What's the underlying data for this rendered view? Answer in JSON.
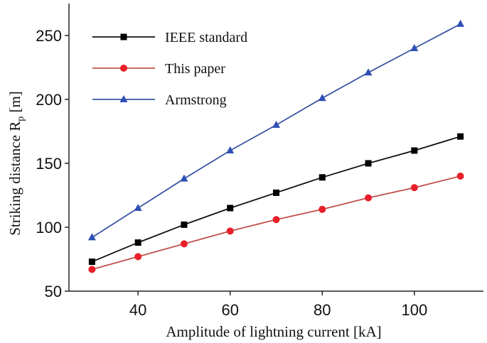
{
  "chart_data": {
    "type": "line",
    "xlabel": "Amplitude of lightning current [kA]",
    "ylabel_main": "Striking distance R",
    "ylabel_sub": "p",
    "ylabel_unit": " [m]",
    "xlim": [
      25,
      115
    ],
    "ylim": [
      50,
      275
    ],
    "x_ticks": [
      40,
      60,
      80,
      100
    ],
    "y_ticks": [
      50,
      100,
      150,
      200,
      250
    ],
    "x": [
      30,
      40,
      50,
      60,
      70,
      80,
      90,
      100,
      110
    ],
    "legend_position": "top-left",
    "grid": false,
    "series": [
      {
        "name": "IEEE standard",
        "marker": "square",
        "color": "#111111",
        "marker_color": "#000000",
        "values": [
          73,
          88,
          102,
          115,
          127,
          139,
          150,
          160,
          171
        ]
      },
      {
        "name": "This paper",
        "marker": "circle",
        "color": "#c0504d",
        "marker_color": "#e8202a",
        "values": [
          67,
          77,
          87,
          97,
          106,
          114,
          123,
          131,
          140
        ]
      },
      {
        "name": "Armstrong",
        "marker": "triangle",
        "color": "#3a55a4",
        "marker_color": "#2e4fb5",
        "values": [
          92,
          115,
          138,
          160,
          180,
          201,
          221,
          240,
          259
        ]
      }
    ]
  }
}
